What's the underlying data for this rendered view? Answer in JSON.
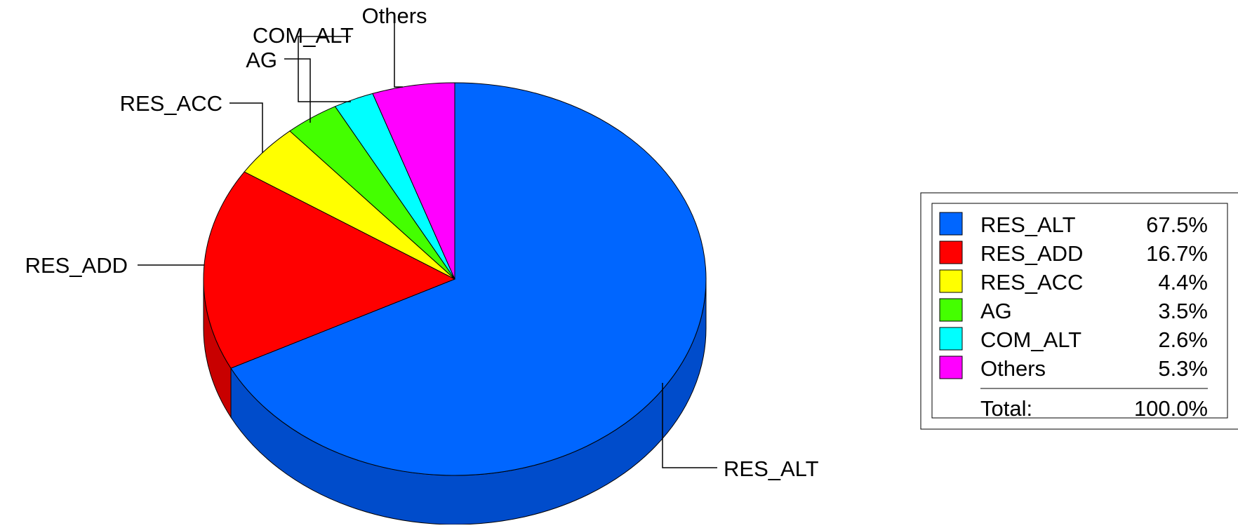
{
  "chart_data": {
    "type": "pie",
    "style": "3d-pie",
    "series": [
      {
        "name": "RES_ALT",
        "value": 67.5,
        "display": "67.5%",
        "color": "#0066ff",
        "side_color": "#004ccb"
      },
      {
        "name": "RES_ADD",
        "value": 16.7,
        "display": "16.7%",
        "color": "#ff0000",
        "side_color": "#c80000"
      },
      {
        "name": "RES_ACC",
        "value": 4.4,
        "display": "4.4%",
        "color": "#ffff00",
        "side_color": "#c8c800"
      },
      {
        "name": "AG",
        "value": 3.5,
        "display": "3.5%",
        "color": "#44ff00",
        "side_color": "#33c800"
      },
      {
        "name": "COM_ALT",
        "value": 2.6,
        "display": "2.6%",
        "color": "#00ffff",
        "side_color": "#00c8c8"
      },
      {
        "name": "Others",
        "value": 5.3,
        "display": "5.3%",
        "color": "#ff00ff",
        "side_color": "#c800c8"
      }
    ],
    "total": {
      "label": "Total:",
      "value": "100.0%"
    },
    "legend_position": "right"
  }
}
